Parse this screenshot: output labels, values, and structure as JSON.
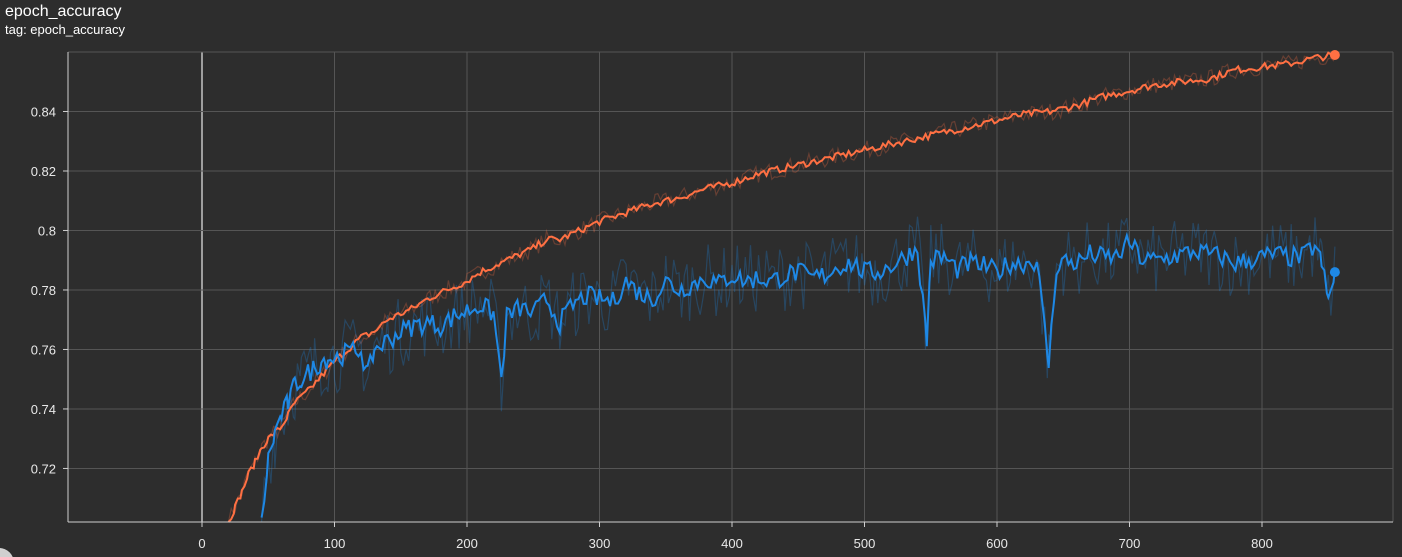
{
  "header": {
    "title": "epoch_accuracy",
    "subtitle": "tag: epoch_accuracy"
  },
  "colors": {
    "background": "#2d2d2d",
    "grid": "#555555",
    "zero_line": "#9e9e9e",
    "train": "#ff7043",
    "validation": "#1e88e5"
  },
  "chart_data": {
    "type": "line",
    "title": "epoch_accuracy",
    "xlim": [
      -100,
      900
    ],
    "ylim": [
      0.702,
      0.86
    ],
    "x_ticks": [
      0,
      100,
      200,
      300,
      400,
      500,
      600,
      700,
      800
    ],
    "y_ticks": [
      0.72,
      0.74,
      0.76,
      0.78,
      0.8,
      0.82,
      0.84
    ],
    "x_tick_labels": [
      "0",
      "100",
      "200",
      "300",
      "400",
      "500",
      "600",
      "700",
      "800"
    ],
    "y_tick_labels": [
      "0.72",
      "0.74",
      "0.76",
      "0.78",
      "0.8",
      "0.82",
      "0.84"
    ],
    "grid": true,
    "legend": "none",
    "series": [
      {
        "color": "#ff7043",
        "x": [
          20,
          25,
          30,
          35,
          40,
          45,
          50,
          55,
          60,
          65,
          70,
          80,
          90,
          100,
          110,
          120,
          130,
          140,
          150,
          160,
          170,
          180,
          190,
          200,
          210,
          220,
          230,
          240,
          250,
          260,
          270,
          280,
          290,
          300,
          320,
          340,
          360,
          380,
          400,
          420,
          440,
          460,
          480,
          500,
          520,
          540,
          560,
          580,
          600,
          620,
          640,
          660,
          680,
          700,
          720,
          740,
          760,
          780,
          800,
          820,
          840,
          855
        ],
        "values": [
          0.702,
          0.707,
          0.712,
          0.718,
          0.722,
          0.727,
          0.73,
          0.732,
          0.734,
          0.738,
          0.742,
          0.746,
          0.751,
          0.756,
          0.76,
          0.764,
          0.766,
          0.77,
          0.772,
          0.774,
          0.777,
          0.779,
          0.781,
          0.783,
          0.786,
          0.788,
          0.79,
          0.792,
          0.794,
          0.797,
          0.797,
          0.799,
          0.801,
          0.803,
          0.806,
          0.809,
          0.811,
          0.814,
          0.816,
          0.819,
          0.821,
          0.823,
          0.825,
          0.827,
          0.829,
          0.831,
          0.833,
          0.835,
          0.837,
          0.839,
          0.84,
          0.842,
          0.845,
          0.847,
          0.849,
          0.85,
          0.851,
          0.854,
          0.855,
          0.856,
          0.858,
          0.859
        ]
      },
      {
        "color": "#1e88e5",
        "x": [
          45,
          50,
          55,
          60,
          65,
          70,
          75,
          80,
          85,
          90,
          95,
          100,
          110,
          120,
          125,
          130,
          140,
          150,
          160,
          170,
          180,
          190,
          200,
          210,
          220,
          226,
          230,
          240,
          250,
          260,
          270,
          280,
          290,
          300,
          310,
          320,
          330,
          340,
          350,
          360,
          370,
          380,
          390,
          400,
          410,
          420,
          430,
          440,
          450,
          460,
          470,
          480,
          490,
          500,
          510,
          520,
          530,
          540,
          547,
          550,
          560,
          570,
          580,
          590,
          600,
          610,
          620,
          630,
          639,
          645,
          650,
          660,
          670,
          680,
          690,
          700,
          710,
          720,
          730,
          740,
          750,
          760,
          770,
          780,
          790,
          800,
          810,
          820,
          830,
          840,
          845,
          850,
          855
        ],
        "values": [
          0.702,
          0.723,
          0.732,
          0.738,
          0.742,
          0.748,
          0.75,
          0.752,
          0.754,
          0.756,
          0.757,
          0.757,
          0.759,
          0.76,
          0.751,
          0.76,
          0.763,
          0.766,
          0.768,
          0.769,
          0.768,
          0.771,
          0.773,
          0.775,
          0.772,
          0.75,
          0.771,
          0.774,
          0.772,
          0.777,
          0.769,
          0.775,
          0.778,
          0.777,
          0.776,
          0.783,
          0.779,
          0.777,
          0.783,
          0.78,
          0.782,
          0.784,
          0.782,
          0.785,
          0.783,
          0.784,
          0.783,
          0.785,
          0.786,
          0.784,
          0.785,
          0.788,
          0.789,
          0.786,
          0.786,
          0.788,
          0.791,
          0.794,
          0.763,
          0.79,
          0.791,
          0.787,
          0.789,
          0.788,
          0.786,
          0.789,
          0.789,
          0.79,
          0.755,
          0.788,
          0.79,
          0.789,
          0.792,
          0.791,
          0.791,
          0.796,
          0.79,
          0.79,
          0.791,
          0.792,
          0.793,
          0.792,
          0.791,
          0.789,
          0.79,
          0.791,
          0.792,
          0.791,
          0.791,
          0.795,
          0.789,
          0.776,
          0.786
        ]
      }
    ]
  }
}
